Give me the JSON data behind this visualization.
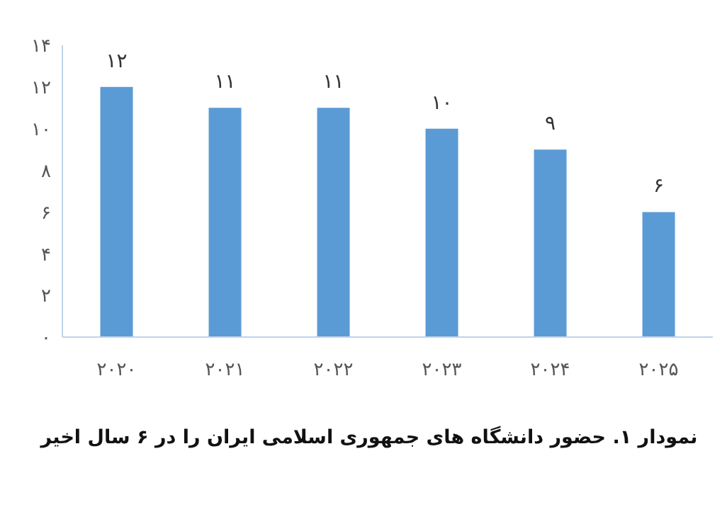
{
  "chart_data": {
    "type": "bar",
    "title": "نمودار ۱. حضور دانشگاه های جمهوری اسلامی ایران را در ۶ سال اخیر",
    "categories": [
      "۲۰۲۰",
      "۲۰۲۱",
      "۲۰۲۲",
      "۲۰۲۳",
      "۲۰۲۴",
      "۲۰۲۵"
    ],
    "values": [
      12,
      11,
      11,
      10,
      9,
      6
    ],
    "value_labels": [
      "۱۲",
      "۱۱",
      "۱۱",
      "۱۰",
      "۹",
      "۶"
    ],
    "color": "#5b9bd5",
    "ylim": [
      0,
      14
    ],
    "yticks": [
      {
        "value": 0,
        "label": "۰"
      },
      {
        "value": 2,
        "label": "۲"
      },
      {
        "value": 4,
        "label": "۴"
      },
      {
        "value": 6,
        "label": "۶"
      },
      {
        "value": 8,
        "label": "۸"
      },
      {
        "value": 10,
        "label": "۱۰"
      },
      {
        "value": 12,
        "label": "۱۲"
      },
      {
        "value": 14,
        "label": "۱۴"
      }
    ],
    "grid": false
  }
}
